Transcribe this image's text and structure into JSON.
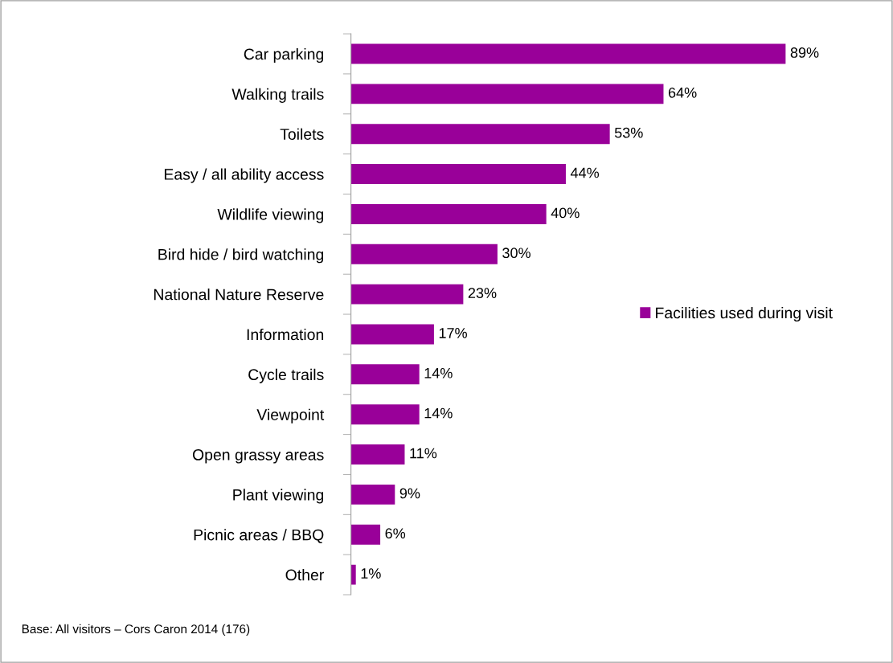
{
  "chart_data": {
    "type": "bar",
    "orientation": "horizontal",
    "categories": [
      "Car parking",
      "Walking trails",
      "Toilets",
      "Easy / all ability access",
      "Wildlife viewing",
      "Bird hide / bird watching",
      "National Nature Reserve",
      "Information",
      "Cycle trails",
      "Viewpoint",
      "Open grassy areas",
      "Plant viewing",
      "Picnic areas / BBQ",
      "Other"
    ],
    "series": [
      {
        "name": "Facilities used during visit",
        "color": "#990099",
        "values": [
          89,
          64,
          53,
          44,
          40,
          30,
          23,
          17,
          14,
          14,
          11,
          9,
          6,
          1
        ],
        "value_labels": [
          "89%",
          "64%",
          "53%",
          "44%",
          "40%",
          "30%",
          "23%",
          "17%",
          "14%",
          "14%",
          "11%",
          "9%",
          "6%",
          "1%"
        ]
      }
    ],
    "legend": "right",
    "grid": false,
    "annotations": [
      "Base: All visitors – Cors Caron 2014 (176)"
    ]
  }
}
